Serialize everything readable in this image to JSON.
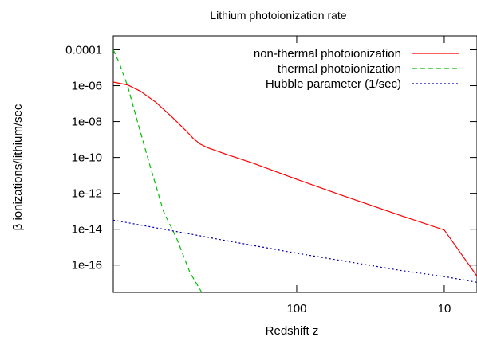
{
  "chart_data": {
    "type": "line",
    "title": "Lithium photoionization rate",
    "xlabel": "Redshift z",
    "ylabel": "β ionizations/lithium/sec",
    "x_scale": "log",
    "x_reversed": true,
    "y_scale": "log",
    "xlim": [
      1750,
      6
    ],
    "ylim": [
      3e-18,
      0.0006
    ],
    "grid": false,
    "legend_position": "top-right",
    "x_ticks": [
      {
        "value": 100,
        "label": "100"
      },
      {
        "value": 10,
        "label": "10"
      }
    ],
    "y_ticks": [
      {
        "value": 0.0001,
        "label": "0.0001"
      },
      {
        "value": 1e-06,
        "label": "1e-06"
      },
      {
        "value": 1e-08,
        "label": "1e-08"
      },
      {
        "value": 1e-10,
        "label": "1e-10"
      },
      {
        "value": 1e-12,
        "label": "1e-12"
      },
      {
        "value": 1e-14,
        "label": "1e-14"
      },
      {
        "value": 1e-16,
        "label": "1e-16"
      }
    ],
    "series": [
      {
        "name": "non-thermal photoionization",
        "color": "#ff0000",
        "style": "solid",
        "x": [
          1750,
          1400,
          1150,
          900,
          700,
          560,
          500,
          450,
          400,
          300,
          200,
          100,
          50,
          20,
          10,
          6
        ],
        "y": [
          1.6e-06,
          1.1e-06,
          5e-07,
          1.2e-07,
          1.8e-08,
          3e-09,
          1.1e-09,
          5.5e-10,
          3.5e-10,
          1.5e-10,
          5e-11,
          6e-12,
          8e-13,
          6e-14,
          9e-15,
          2.4e-17
        ]
      },
      {
        "name": "thermal photoionization",
        "color": "#00c000",
        "style": "dashed",
        "x": [
          1750,
          1600,
          1400,
          1200,
          1000,
          800,
          650,
          530,
          440
        ],
        "y": [
          0.0001,
          2e-05,
          1e-06,
          1e-08,
          5e-11,
          1e-13,
          3e-15,
          4e-17,
          3e-18
        ]
      },
      {
        "name": "Hubble parameter (1/sec)",
        "color": "#0000b0",
        "style": "dotted",
        "x": [
          1750,
          1000,
          500,
          300,
          100,
          50,
          20,
          10,
          6
        ],
        "y": [
          3.2e-14,
          1.4e-14,
          5e-15,
          2.3e-15,
          4.6e-16,
          1.8e-16,
          5.1e-17,
          2.3e-17,
          1.1e-17
        ]
      }
    ]
  }
}
